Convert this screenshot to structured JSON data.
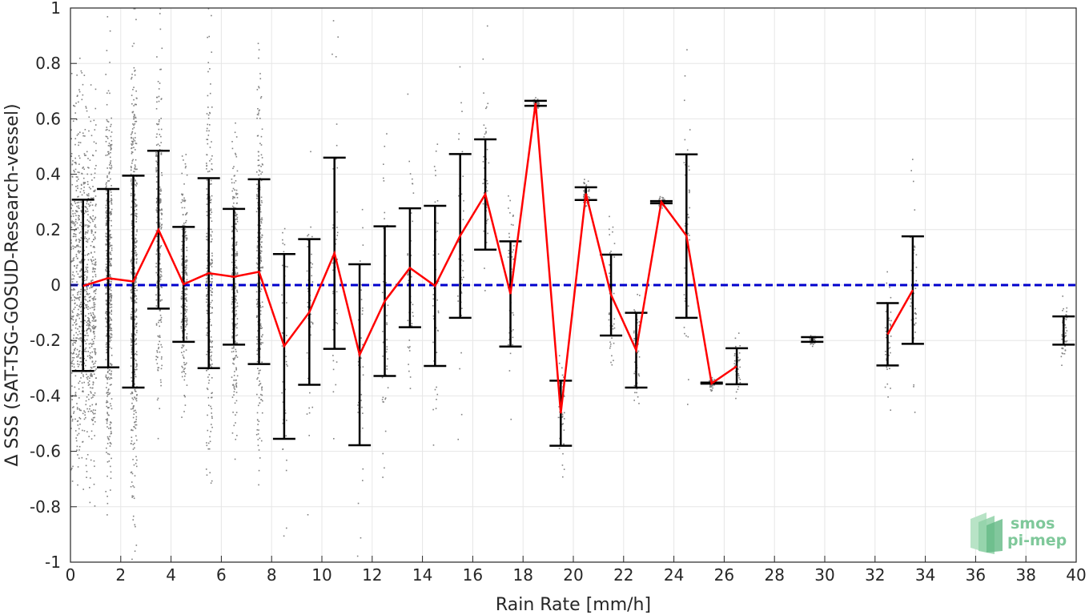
{
  "chart_data": {
    "type": "scatter",
    "xlabel": "Rain Rate [mm/h]",
    "ylabel": "Δ SSS (SAT-TSG-GOSUD-Research-vessel)",
    "xlim": [
      0,
      40
    ],
    "ylim": [
      -1,
      1
    ],
    "xticks": [
      0,
      2,
      4,
      6,
      8,
      10,
      12,
      14,
      16,
      18,
      20,
      22,
      24,
      26,
      28,
      30,
      32,
      34,
      36,
      38,
      40
    ],
    "yticks": [
      -1,
      -0.8,
      -0.6,
      -0.4,
      -0.2,
      0,
      0.2,
      0.4,
      0.6,
      0.8,
      1
    ],
    "ytick_labels": [
      "-1",
      "-0.8",
      "-0.6",
      "-0.4",
      "-0.2",
      "0",
      "0.2",
      "0.4",
      "0.6",
      "0.8",
      "1"
    ],
    "grid": true,
    "colors": {
      "scatter": "#808080",
      "mean_line": "#ff0000",
      "zero_line": "#0000cc",
      "error_bars": "#000000",
      "grid": "#e6e6e6",
      "axes": "#262626"
    },
    "zero_line": {
      "style": "dashed",
      "y": 0
    },
    "binned_stats": [
      {
        "x": 0.5,
        "mean": -0.003,
        "low": -0.31,
        "high": 0.308
      },
      {
        "x": 1.5,
        "mean": 0.025,
        "low": -0.297,
        "high": 0.347
      },
      {
        "x": 2.5,
        "mean": 0.013,
        "low": -0.37,
        "high": 0.395
      },
      {
        "x": 3.5,
        "mean": 0.2,
        "low": -0.085,
        "high": 0.485
      },
      {
        "x": 4.5,
        "mean": 0.003,
        "low": -0.205,
        "high": 0.21
      },
      {
        "x": 5.5,
        "mean": 0.043,
        "low": -0.3,
        "high": 0.386
      },
      {
        "x": 6.5,
        "mean": 0.03,
        "low": -0.215,
        "high": 0.275
      },
      {
        "x": 7.5,
        "mean": 0.048,
        "low": -0.285,
        "high": 0.382
      },
      {
        "x": 8.5,
        "mean": -0.22,
        "low": -0.555,
        "high": 0.112
      },
      {
        "x": 9.5,
        "mean": -0.098,
        "low": -0.36,
        "high": 0.166
      },
      {
        "x": 10.5,
        "mean": 0.115,
        "low": -0.23,
        "high": 0.46
      },
      {
        "x": 11.5,
        "mean": -0.252,
        "low": -0.578,
        "high": 0.075
      },
      {
        "x": 12.5,
        "mean": -0.058,
        "low": -0.328,
        "high": 0.212
      },
      {
        "x": 13.5,
        "mean": 0.062,
        "low": -0.152,
        "high": 0.277
      },
      {
        "x": 14.5,
        "mean": -0.003,
        "low": -0.292,
        "high": 0.286
      },
      {
        "x": 15.5,
        "mean": 0.178,
        "low": -0.118,
        "high": 0.473
      },
      {
        "x": 16.5,
        "mean": 0.328,
        "low": 0.128,
        "high": 0.526
      },
      {
        "x": 17.5,
        "mean": -0.032,
        "low": -0.222,
        "high": 0.158
      },
      {
        "x": 18.5,
        "mean": 0.657,
        "low": 0.647,
        "high": 0.665
      },
      {
        "x": 19.5,
        "mean": -0.463,
        "low": -0.58,
        "high": -0.345
      },
      {
        "x": 20.5,
        "mean": 0.33,
        "low": 0.307,
        "high": 0.353
      },
      {
        "x": 21.5,
        "mean": -0.035,
        "low": -0.182,
        "high": 0.11
      },
      {
        "x": 22.5,
        "mean": -0.235,
        "low": -0.37,
        "high": -0.1
      },
      {
        "x": 23.5,
        "mean": 0.3,
        "low": 0.295,
        "high": 0.303
      },
      {
        "x": 24.5,
        "mean": 0.178,
        "low": -0.118,
        "high": 0.472
      },
      {
        "x": 25.5,
        "mean": -0.355,
        "low": -0.356,
        "high": -0.352
      },
      {
        "x": 26.5,
        "mean": -0.293,
        "low": -0.358,
        "high": -0.228
      },
      {
        "x": 29.5,
        "mean": -0.196,
        "low": -0.205,
        "high": -0.188,
        "connect": false
      },
      {
        "x": 32.5,
        "mean": -0.178,
        "low": -0.29,
        "high": -0.065
      },
      {
        "x": 33.5,
        "mean": -0.018,
        "low": -0.212,
        "high": 0.176
      },
      {
        "x": 39.5,
        "mean": -0.163,
        "low": -0.215,
        "high": -0.113,
        "connect": false
      }
    ],
    "scatter_note_bins": "raw matchup points, dense near 0-8 mm/h"
  },
  "logo": {
    "line1": "smos",
    "line2": "pi-mep"
  }
}
